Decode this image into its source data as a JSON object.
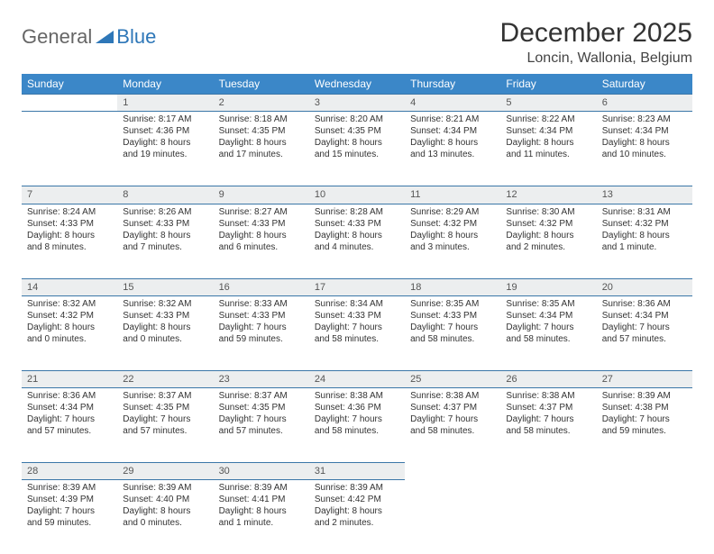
{
  "brand": {
    "part1": "General",
    "part2": "Blue"
  },
  "title": "December 2025",
  "location": "Loncin, Wallonia, Belgium",
  "colors": {
    "header_bg": "#3b87c8",
    "header_text": "#ffffff",
    "rule": "#3b77a8",
    "daynum_bg": "#eceeef",
    "brand_blue": "#2e77b8"
  },
  "weekdays": [
    "Sunday",
    "Monday",
    "Tuesday",
    "Wednesday",
    "Thursday",
    "Friday",
    "Saturday"
  ],
  "weeks": [
    [
      null,
      {
        "n": "1",
        "sr": "Sunrise: 8:17 AM",
        "ss": "Sunset: 4:36 PM",
        "dl": "Daylight: 8 hours and 19 minutes."
      },
      {
        "n": "2",
        "sr": "Sunrise: 8:18 AM",
        "ss": "Sunset: 4:35 PM",
        "dl": "Daylight: 8 hours and 17 minutes."
      },
      {
        "n": "3",
        "sr": "Sunrise: 8:20 AM",
        "ss": "Sunset: 4:35 PM",
        "dl": "Daylight: 8 hours and 15 minutes."
      },
      {
        "n": "4",
        "sr": "Sunrise: 8:21 AM",
        "ss": "Sunset: 4:34 PM",
        "dl": "Daylight: 8 hours and 13 minutes."
      },
      {
        "n": "5",
        "sr": "Sunrise: 8:22 AM",
        "ss": "Sunset: 4:34 PM",
        "dl": "Daylight: 8 hours and 11 minutes."
      },
      {
        "n": "6",
        "sr": "Sunrise: 8:23 AM",
        "ss": "Sunset: 4:34 PM",
        "dl": "Daylight: 8 hours and 10 minutes."
      }
    ],
    [
      {
        "n": "7",
        "sr": "Sunrise: 8:24 AM",
        "ss": "Sunset: 4:33 PM",
        "dl": "Daylight: 8 hours and 8 minutes."
      },
      {
        "n": "8",
        "sr": "Sunrise: 8:26 AM",
        "ss": "Sunset: 4:33 PM",
        "dl": "Daylight: 8 hours and 7 minutes."
      },
      {
        "n": "9",
        "sr": "Sunrise: 8:27 AM",
        "ss": "Sunset: 4:33 PM",
        "dl": "Daylight: 8 hours and 6 minutes."
      },
      {
        "n": "10",
        "sr": "Sunrise: 8:28 AM",
        "ss": "Sunset: 4:33 PM",
        "dl": "Daylight: 8 hours and 4 minutes."
      },
      {
        "n": "11",
        "sr": "Sunrise: 8:29 AM",
        "ss": "Sunset: 4:32 PM",
        "dl": "Daylight: 8 hours and 3 minutes."
      },
      {
        "n": "12",
        "sr": "Sunrise: 8:30 AM",
        "ss": "Sunset: 4:32 PM",
        "dl": "Daylight: 8 hours and 2 minutes."
      },
      {
        "n": "13",
        "sr": "Sunrise: 8:31 AM",
        "ss": "Sunset: 4:32 PM",
        "dl": "Daylight: 8 hours and 1 minute."
      }
    ],
    [
      {
        "n": "14",
        "sr": "Sunrise: 8:32 AM",
        "ss": "Sunset: 4:32 PM",
        "dl": "Daylight: 8 hours and 0 minutes."
      },
      {
        "n": "15",
        "sr": "Sunrise: 8:32 AM",
        "ss": "Sunset: 4:33 PM",
        "dl": "Daylight: 8 hours and 0 minutes."
      },
      {
        "n": "16",
        "sr": "Sunrise: 8:33 AM",
        "ss": "Sunset: 4:33 PM",
        "dl": "Daylight: 7 hours and 59 minutes."
      },
      {
        "n": "17",
        "sr": "Sunrise: 8:34 AM",
        "ss": "Sunset: 4:33 PM",
        "dl": "Daylight: 7 hours and 58 minutes."
      },
      {
        "n": "18",
        "sr": "Sunrise: 8:35 AM",
        "ss": "Sunset: 4:33 PM",
        "dl": "Daylight: 7 hours and 58 minutes."
      },
      {
        "n": "19",
        "sr": "Sunrise: 8:35 AM",
        "ss": "Sunset: 4:34 PM",
        "dl": "Daylight: 7 hours and 58 minutes."
      },
      {
        "n": "20",
        "sr": "Sunrise: 8:36 AM",
        "ss": "Sunset: 4:34 PM",
        "dl": "Daylight: 7 hours and 57 minutes."
      }
    ],
    [
      {
        "n": "21",
        "sr": "Sunrise: 8:36 AM",
        "ss": "Sunset: 4:34 PM",
        "dl": "Daylight: 7 hours and 57 minutes."
      },
      {
        "n": "22",
        "sr": "Sunrise: 8:37 AM",
        "ss": "Sunset: 4:35 PM",
        "dl": "Daylight: 7 hours and 57 minutes."
      },
      {
        "n": "23",
        "sr": "Sunrise: 8:37 AM",
        "ss": "Sunset: 4:35 PM",
        "dl": "Daylight: 7 hours and 57 minutes."
      },
      {
        "n": "24",
        "sr": "Sunrise: 8:38 AM",
        "ss": "Sunset: 4:36 PM",
        "dl": "Daylight: 7 hours and 58 minutes."
      },
      {
        "n": "25",
        "sr": "Sunrise: 8:38 AM",
        "ss": "Sunset: 4:37 PM",
        "dl": "Daylight: 7 hours and 58 minutes."
      },
      {
        "n": "26",
        "sr": "Sunrise: 8:38 AM",
        "ss": "Sunset: 4:37 PM",
        "dl": "Daylight: 7 hours and 58 minutes."
      },
      {
        "n": "27",
        "sr": "Sunrise: 8:39 AM",
        "ss": "Sunset: 4:38 PM",
        "dl": "Daylight: 7 hours and 59 minutes."
      }
    ],
    [
      {
        "n": "28",
        "sr": "Sunrise: 8:39 AM",
        "ss": "Sunset: 4:39 PM",
        "dl": "Daylight: 7 hours and 59 minutes."
      },
      {
        "n": "29",
        "sr": "Sunrise: 8:39 AM",
        "ss": "Sunset: 4:40 PM",
        "dl": "Daylight: 8 hours and 0 minutes."
      },
      {
        "n": "30",
        "sr": "Sunrise: 8:39 AM",
        "ss": "Sunset: 4:41 PM",
        "dl": "Daylight: 8 hours and 1 minute."
      },
      {
        "n": "31",
        "sr": "Sunrise: 8:39 AM",
        "ss": "Sunset: 4:42 PM",
        "dl": "Daylight: 8 hours and 2 minutes."
      },
      null,
      null,
      null
    ]
  ]
}
